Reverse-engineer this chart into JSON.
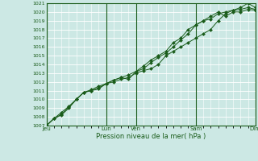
{
  "title": "",
  "xlabel": "Pression niveau de la mer( hPa )",
  "ylabel": "",
  "bg_color": "#cce8e4",
  "grid_color": "#ffffff",
  "line_color": "#1a5c1a",
  "marker_color": "#1a5c1a",
  "ylim": [
    1007,
    1021
  ],
  "yticks": [
    1007,
    1008,
    1009,
    1010,
    1011,
    1012,
    1013,
    1014,
    1015,
    1016,
    1017,
    1018,
    1019,
    1020,
    1021
  ],
  "day_labels": [
    "Jeu",
    "Lun",
    "Ven",
    "Sam",
    "Dim"
  ],
  "day_positions": [
    0,
    48,
    72,
    120,
    168
  ],
  "vline_positions": [
    0,
    48,
    72,
    120,
    168
  ],
  "series1_x": [
    0,
    6,
    12,
    18,
    24,
    30,
    36,
    42,
    48,
    54,
    60,
    66,
    72,
    78,
    84,
    90,
    96,
    102,
    108,
    114,
    120,
    126,
    132,
    138,
    144,
    150,
    156,
    162,
    168
  ],
  "series1_y": [
    1007.0,
    1007.8,
    1008.2,
    1009.0,
    1010.0,
    1010.8,
    1011.0,
    1011.2,
    1011.8,
    1012.0,
    1012.3,
    1012.5,
    1013.0,
    1013.3,
    1013.5,
    1014.0,
    1015.0,
    1015.5,
    1016.0,
    1016.5,
    1017.0,
    1017.5,
    1018.0,
    1019.0,
    1019.8,
    1020.2,
    1020.3,
    1020.5,
    1020.3
  ],
  "series2_x": [
    0,
    6,
    12,
    18,
    24,
    30,
    36,
    42,
    48,
    54,
    60,
    66,
    72,
    78,
    84,
    90,
    96,
    102,
    108,
    114,
    120,
    126,
    132,
    138,
    144,
    150,
    156,
    162,
    168
  ],
  "series2_y": [
    1007.0,
    1007.8,
    1008.5,
    1009.2,
    1010.0,
    1010.8,
    1011.0,
    1011.3,
    1011.8,
    1012.2,
    1012.5,
    1012.8,
    1013.2,
    1013.5,
    1014.2,
    1014.8,
    1015.3,
    1016.0,
    1016.8,
    1017.5,
    1018.5,
    1019.0,
    1019.5,
    1020.0,
    1019.5,
    1020.0,
    1020.0,
    1020.3,
    1020.2
  ],
  "series3_x": [
    0,
    6,
    12,
    18,
    24,
    30,
    36,
    42,
    48,
    54,
    60,
    66,
    72,
    78,
    84,
    90,
    96,
    102,
    108,
    114,
    120,
    126,
    132,
    138,
    144,
    150,
    156,
    162,
    168
  ],
  "series3_y": [
    1007.0,
    1007.8,
    1008.3,
    1009.1,
    1010.0,
    1010.8,
    1011.1,
    1011.5,
    1011.8,
    1012.2,
    1012.5,
    1012.3,
    1013.2,
    1013.8,
    1014.5,
    1015.0,
    1015.5,
    1016.5,
    1017.0,
    1018.0,
    1018.5,
    1019.0,
    1019.2,
    1019.8,
    1020.0,
    1020.2,
    1020.5,
    1021.0,
    1020.5
  ],
  "xlim": [
    0,
    168
  ],
  "minor_x_spacing": 6,
  "minor_y": false
}
